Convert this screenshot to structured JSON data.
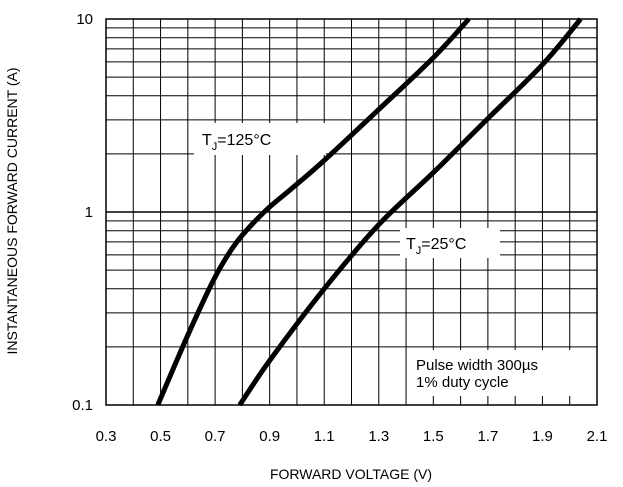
{
  "chart_data": {
    "type": "line",
    "title": "",
    "xlabel": "FORWARD VOLTAGE (V)",
    "ylabel": "INSTANTANEOUS FORWARD CURRENT (A)",
    "xlim": [
      0.3,
      2.1
    ],
    "ylim": [
      0.1,
      10
    ],
    "y_scale": "log",
    "grid": true,
    "x_ticks": [
      "0.3",
      "0.5",
      "0.7",
      "0.9",
      "1.1",
      "1.3",
      "1.5",
      "1.7",
      "1.9",
      "2.1"
    ],
    "y_ticks": [
      {
        "value": 0.1,
        "label": "0.1"
      },
      {
        "value": 1,
        "label": "1"
      },
      {
        "value": 10,
        "label": "10"
      }
    ],
    "series": [
      {
        "name": "TJ=125°C",
        "label_main": "T",
        "label_sub": "J",
        "label_rest": "=125°C",
        "x": [
          0.49,
          0.6,
          0.7,
          0.78,
          0.88,
          0.98,
          1.1,
          1.3,
          1.5,
          1.63
        ],
        "y": [
          0.1,
          0.23,
          0.46,
          0.7,
          1.0,
          1.32,
          1.85,
          3.4,
          6.3,
          10
        ]
      },
      {
        "name": "TJ=25°C",
        "label_main": "T",
        "label_sub": "J",
        "label_rest": "=25°C",
        "x": [
          0.79,
          0.9,
          1.1,
          1.3,
          1.5,
          1.7,
          1.9,
          2.04
        ],
        "y": [
          0.1,
          0.17,
          0.4,
          0.86,
          1.6,
          3.05,
          5.8,
          10
        ]
      }
    ],
    "annotations": [
      "Pulse width 300µs",
      "1% duty cycle"
    ]
  },
  "colors": {
    "line": "#000000",
    "grid": "#000000",
    "background": "#ffffff"
  }
}
